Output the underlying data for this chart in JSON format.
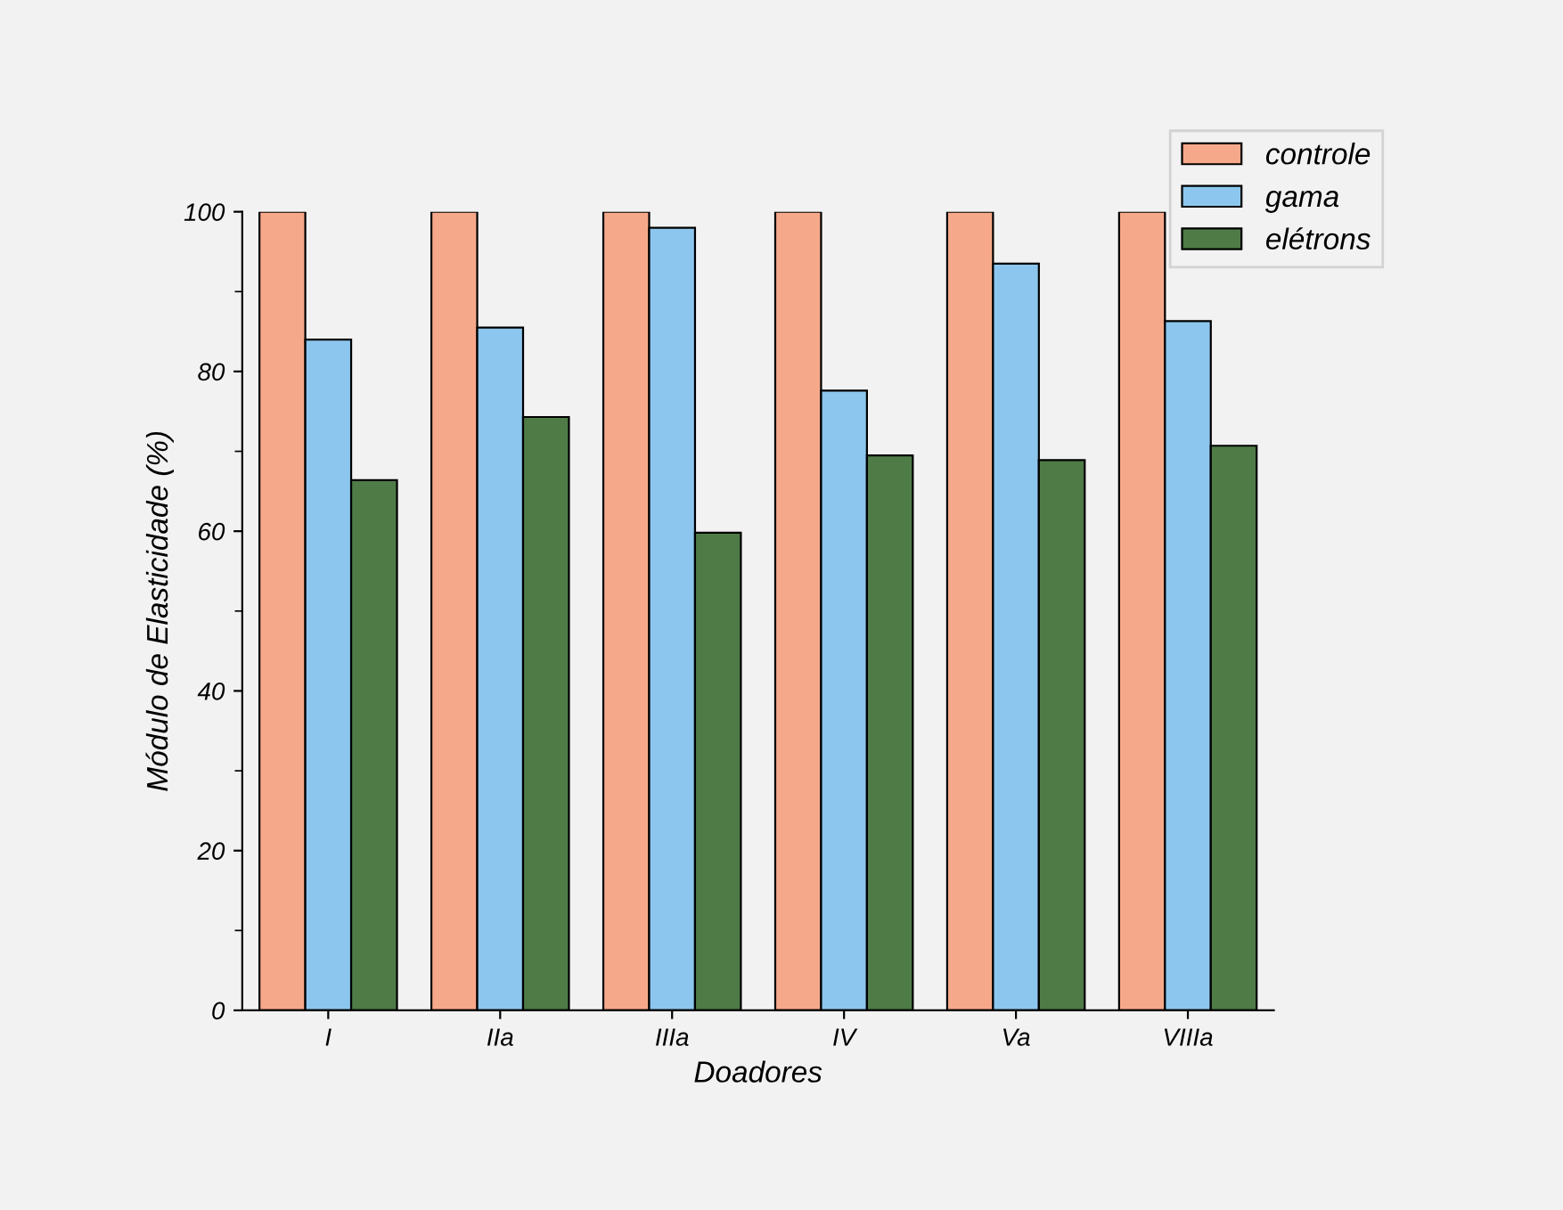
{
  "chart_data": {
    "type": "bar",
    "xlabel": "Doadores",
    "ylabel": "Módulo de Elasticidade (%)",
    "categories": [
      "I",
      "IIa",
      "IIIa",
      "IV",
      "Va",
      "VIIIa"
    ],
    "series": [
      {
        "name": "controle",
        "color": "#f6a98a",
        "values": [
          100,
          100,
          100,
          100,
          100,
          100
        ]
      },
      {
        "name": "gama",
        "color": "#8cc6ee",
        "values": [
          84,
          85.5,
          98,
          77.6,
          93.5,
          86.3
        ]
      },
      {
        "name": "elétrons",
        "color": "#4f7b47",
        "values": [
          66.4,
          74.3,
          59.8,
          69.5,
          68.9,
          70.7
        ]
      }
    ],
    "ylim": [
      0,
      100
    ],
    "yticks": [
      0,
      20,
      40,
      60,
      80,
      100
    ],
    "grid": false,
    "legend": "top right"
  }
}
